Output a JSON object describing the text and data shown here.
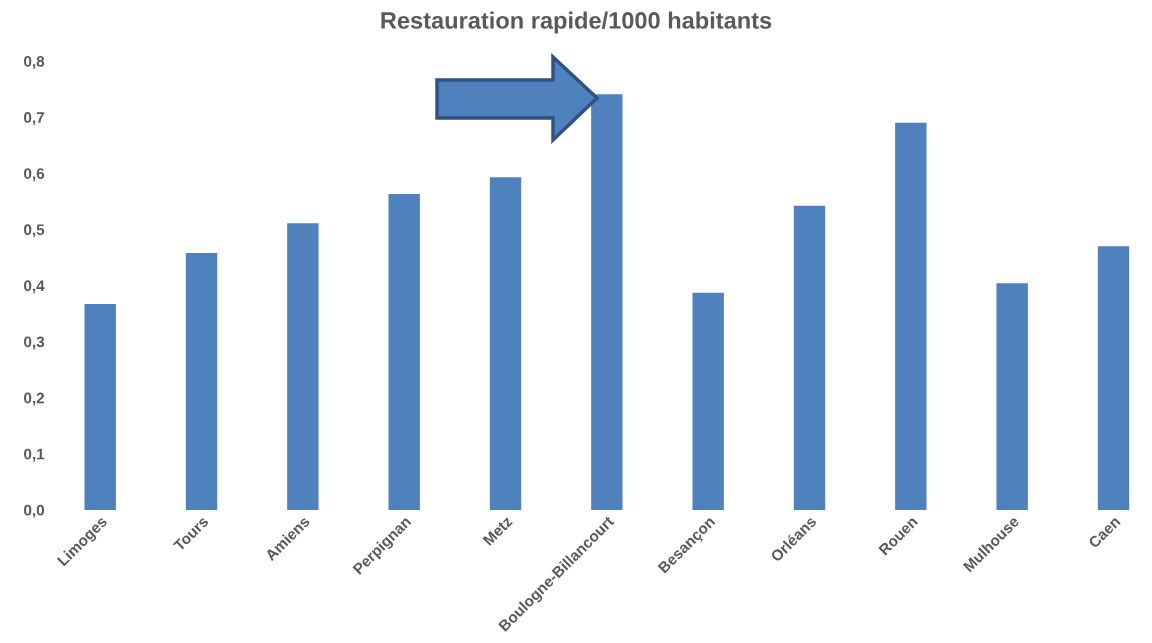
{
  "chart_data": {
    "type": "bar",
    "title": "Restauration rapide/1000 habitants",
    "categories": [
      "Limoges",
      "Tours",
      "Amiens",
      "Perpignan",
      "Metz",
      "Boulogne-Billancourt",
      "Besançon",
      "Orléans",
      "Rouen",
      "Mulhouse",
      "Caen"
    ],
    "values": [
      0.367,
      0.458,
      0.511,
      0.563,
      0.593,
      0.741,
      0.387,
      0.542,
      0.69,
      0.404,
      0.47
    ],
    "color": "#4f81bd",
    "ylim": [
      0,
      0.8
    ],
    "yticks": [
      {
        "value": 0,
        "label": "0,0"
      },
      {
        "value": 0.1,
        "label": "0,1"
      },
      {
        "value": 0.2,
        "label": "0,2"
      },
      {
        "value": 0.3,
        "label": "0,3"
      },
      {
        "value": 0.4,
        "label": "0,4"
      },
      {
        "value": 0.5,
        "label": "0,5"
      },
      {
        "value": 0.6,
        "label": "0,6"
      },
      {
        "value": 0.7,
        "label": "0,7"
      },
      {
        "value": 0.8,
        "label": "0,8"
      }
    ],
    "grid": false,
    "legend": false
  }
}
